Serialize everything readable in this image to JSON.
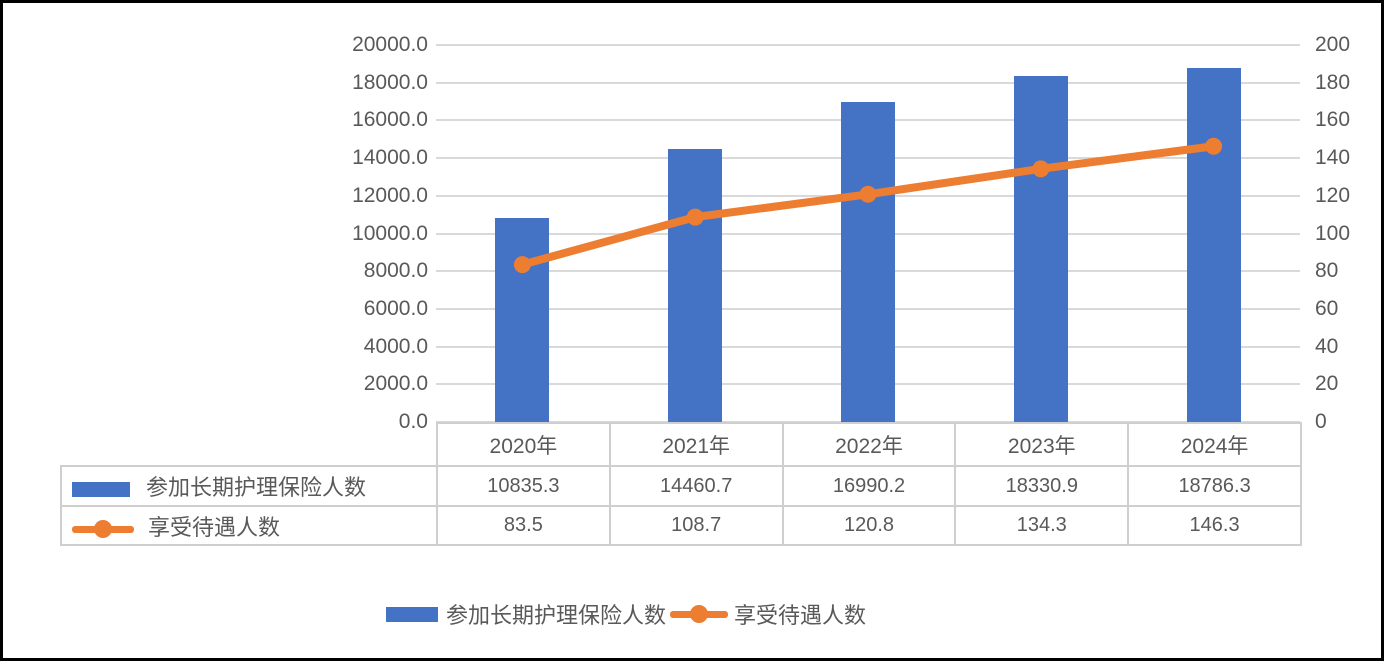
{
  "chart_data": {
    "type": "bar",
    "subtype": "bar-line-combo",
    "categories": [
      "2020年",
      "2021年",
      "2022年",
      "2023年",
      "2024年"
    ],
    "series": [
      {
        "name": "参加长期护理保险人数",
        "type": "bar",
        "axis": "left",
        "color": "#4472C4",
        "values": [
          10835.3,
          14460.7,
          16990.2,
          18330.9,
          18786.3
        ],
        "display_values": [
          "10835.3",
          "14460.7",
          "16990.2",
          "18330.9",
          "18786.3"
        ]
      },
      {
        "name": "享受待遇人数",
        "type": "line",
        "axis": "right",
        "color": "#ED7D31",
        "values": [
          83.5,
          108.7,
          120.8,
          134.3,
          146.3
        ],
        "display_values": [
          "83.5",
          "108.7",
          "120.8",
          "134.3",
          "146.3"
        ]
      }
    ],
    "left_axis": {
      "min": 0,
      "max": 20000,
      "step": 2000,
      "ticks": [
        "0.0",
        "2000.0",
        "4000.0",
        "6000.0",
        "8000.0",
        "10000.0",
        "12000.0",
        "14000.0",
        "16000.0",
        "18000.0",
        "20000.0"
      ]
    },
    "right_axis": {
      "min": 0,
      "max": 200,
      "step": 20,
      "ticks": [
        "0",
        "20",
        "40",
        "60",
        "80",
        "100",
        "120",
        "140",
        "160",
        "180",
        "200"
      ]
    },
    "grid": true,
    "legend_position": "bottom",
    "data_table_visible": true,
    "title": ""
  },
  "colors": {
    "bar": "#4472C4",
    "line": "#ED7D31",
    "gridline": "#D9D9D9",
    "table_border": "#CFCFCF",
    "text": "#595959",
    "frame": "#000000",
    "background": "#FFFFFF"
  }
}
